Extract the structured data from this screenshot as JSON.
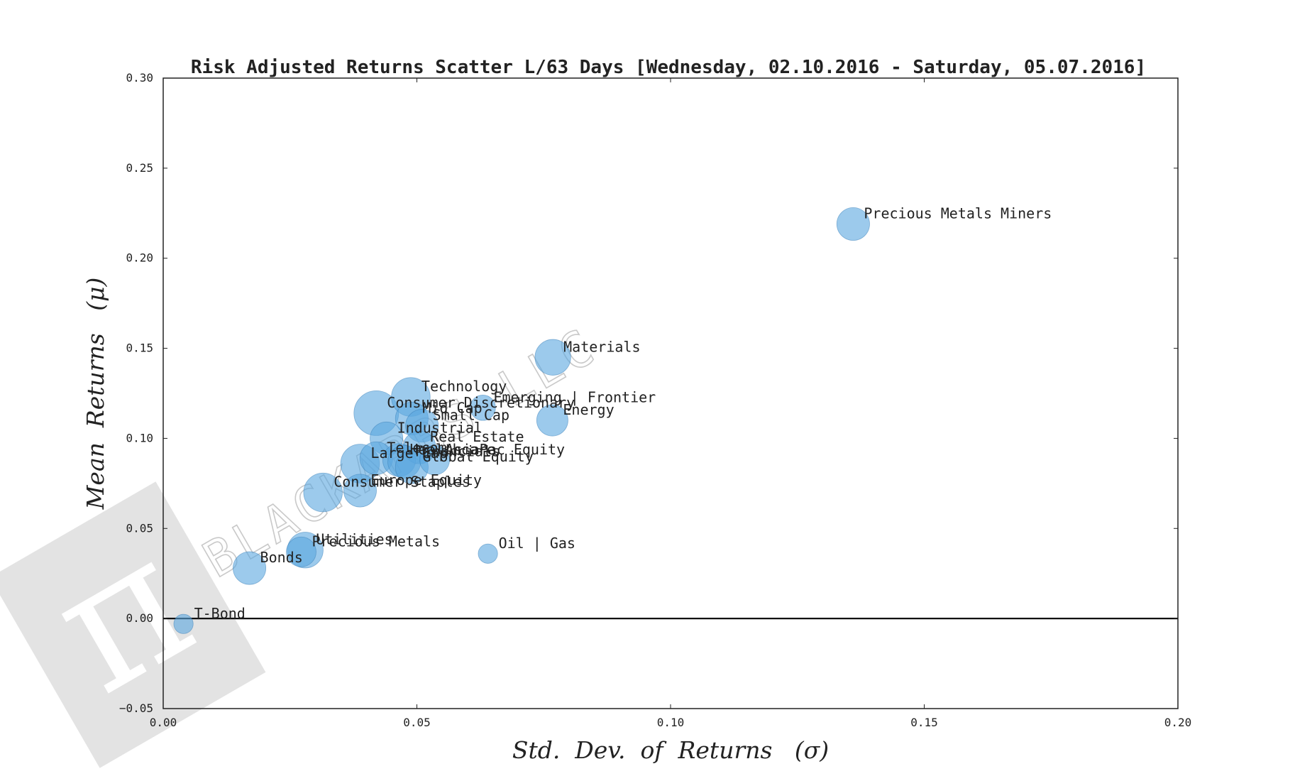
{
  "chart_data": {
    "type": "scatter",
    "title": "Risk Adjusted Returns Scatter L/63 Days [Wednesday, 02.10.2016 - Saturday, 05.07.2016]",
    "xlabel": "Std.  Dev.  of  Returns   (σ)",
    "ylabel": "Mean  Returns   (μ)",
    "xlim": [
      0.0,
      0.2
    ],
    "ylim": [
      -0.05,
      0.3
    ],
    "xticks": [
      0.0,
      0.05,
      0.1,
      0.15,
      0.2
    ],
    "xtick_labels": [
      "0.00",
      "0.05",
      "0.10",
      "0.15",
      "0.20"
    ],
    "yticks": [
      -0.05,
      0.0,
      0.05,
      0.1,
      0.15,
      0.2,
      0.25,
      0.3
    ],
    "ytick_labels": [
      "−0.05",
      "0.00",
      "0.05",
      "0.10",
      "0.15",
      "0.20",
      "0.25",
      "0.30"
    ],
    "grid": false,
    "zero_line": 0.0,
    "marker_color": "#5aa7e0",
    "points": [
      {
        "label": "Precious Metals Miners",
        "x": 0.136,
        "y": 0.219,
        "size": 22
      },
      {
        "label": "Materials",
        "x": 0.0768,
        "y": 0.145,
        "size": 24
      },
      {
        "label": "Energy",
        "x": 0.0767,
        "y": 0.11,
        "size": 21
      },
      {
        "label": "Emerging | Frontier",
        "x": 0.063,
        "y": 0.117,
        "size": 17
      },
      {
        "label": "Technology",
        "x": 0.0488,
        "y": 0.123,
        "size": 26
      },
      {
        "label": "Consumer Discretionary",
        "x": 0.042,
        "y": 0.114,
        "size": 30
      },
      {
        "label": "Mid Cap",
        "x": 0.049,
        "y": 0.111,
        "size": 22
      },
      {
        "label": "Small Cap",
        "x": 0.051,
        "y": 0.107,
        "size": 22
      },
      {
        "label": "Industrial",
        "x": 0.044,
        "y": 0.1,
        "size": 22
      },
      {
        "label": "Real Estate",
        "x": 0.0505,
        "y": 0.095,
        "size": 22
      },
      {
        "label": "AsiaPac Equity",
        "x": 0.0535,
        "y": 0.088,
        "size": 20
      },
      {
        "label": "Telecom",
        "x": 0.042,
        "y": 0.089,
        "size": 22
      },
      {
        "label": "Healthcare",
        "x": 0.0465,
        "y": 0.088,
        "size": 22
      },
      {
        "label": "Financials",
        "x": 0.0475,
        "y": 0.087,
        "size": 22
      },
      {
        "label": "Large Cap",
        "x": 0.0388,
        "y": 0.086,
        "size": 26
      },
      {
        "label": "Global Equity",
        "x": 0.049,
        "y": 0.084,
        "size": 22
      },
      {
        "label": "Consumer Staples",
        "x": 0.0315,
        "y": 0.07,
        "size": 26
      },
      {
        "label": "Europe Equity",
        "x": 0.0388,
        "y": 0.071,
        "size": 22
      },
      {
        "label": "Utilities",
        "x": 0.028,
        "y": 0.038,
        "size": 24
      },
      {
        "label": "Precious Metals",
        "x": 0.0272,
        "y": 0.037,
        "size": 20
      },
      {
        "label": "Oil | Gas",
        "x": 0.064,
        "y": 0.036,
        "size": 13
      },
      {
        "label": "Bonds",
        "x": 0.017,
        "y": 0.028,
        "size": 22
      },
      {
        "label": "T-Bond",
        "x": 0.004,
        "y": -0.003,
        "size": 13
      }
    ]
  },
  "watermark": {
    "text": "BLACKARBS LLC",
    "glyph": "π",
    "color": "#e3e3e3"
  }
}
